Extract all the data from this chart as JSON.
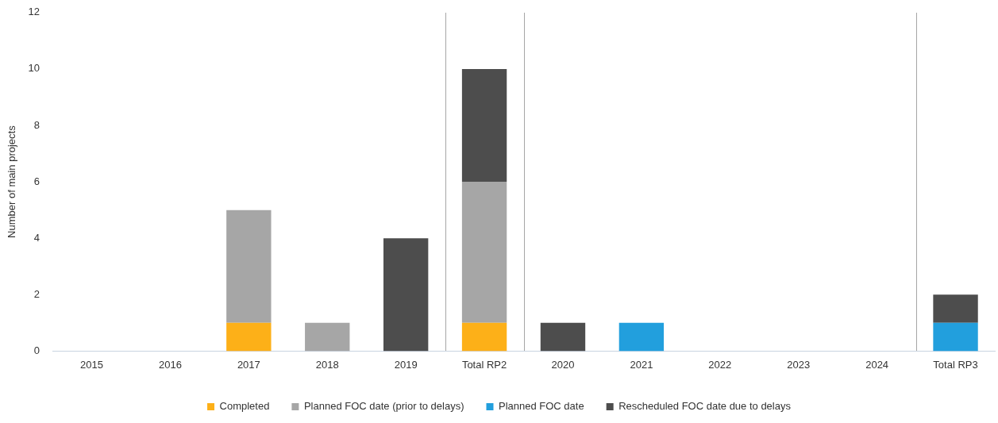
{
  "chart_data": {
    "type": "bar",
    "stacked": true,
    "ylabel": "Number of main projects",
    "categories": [
      "2015",
      "2016",
      "2017",
      "2018",
      "2019",
      "Total RP2",
      "2020",
      "2021",
      "2022",
      "2023",
      "2024",
      "Total RP3"
    ],
    "series": [
      {
        "name": "Completed",
        "color": "#fdb018",
        "values": [
          null,
          null,
          1,
          null,
          null,
          1,
          null,
          null,
          null,
          null,
          null,
          null
        ]
      },
      {
        "name": "Planned FOC date (prior to delays)",
        "color": "#a6a6a6",
        "values": [
          null,
          null,
          4,
          1,
          null,
          5,
          null,
          null,
          null,
          null,
          null,
          null
        ]
      },
      {
        "name": "Planned FOC date",
        "color": "#229fdd",
        "values": [
          null,
          null,
          null,
          null,
          null,
          null,
          null,
          1,
          null,
          null,
          null,
          1
        ]
      },
      {
        "name": "Rescheduled FOC date due to delays",
        "color": "#4d4d4d",
        "values": [
          null,
          null,
          null,
          null,
          4,
          4,
          1,
          null,
          null,
          null,
          null,
          1
        ]
      }
    ],
    "ylim": [
      0,
      12
    ],
    "yticks": [
      0,
      2,
      4,
      6,
      8,
      10,
      12
    ],
    "grid": false,
    "legend": "bottom"
  }
}
